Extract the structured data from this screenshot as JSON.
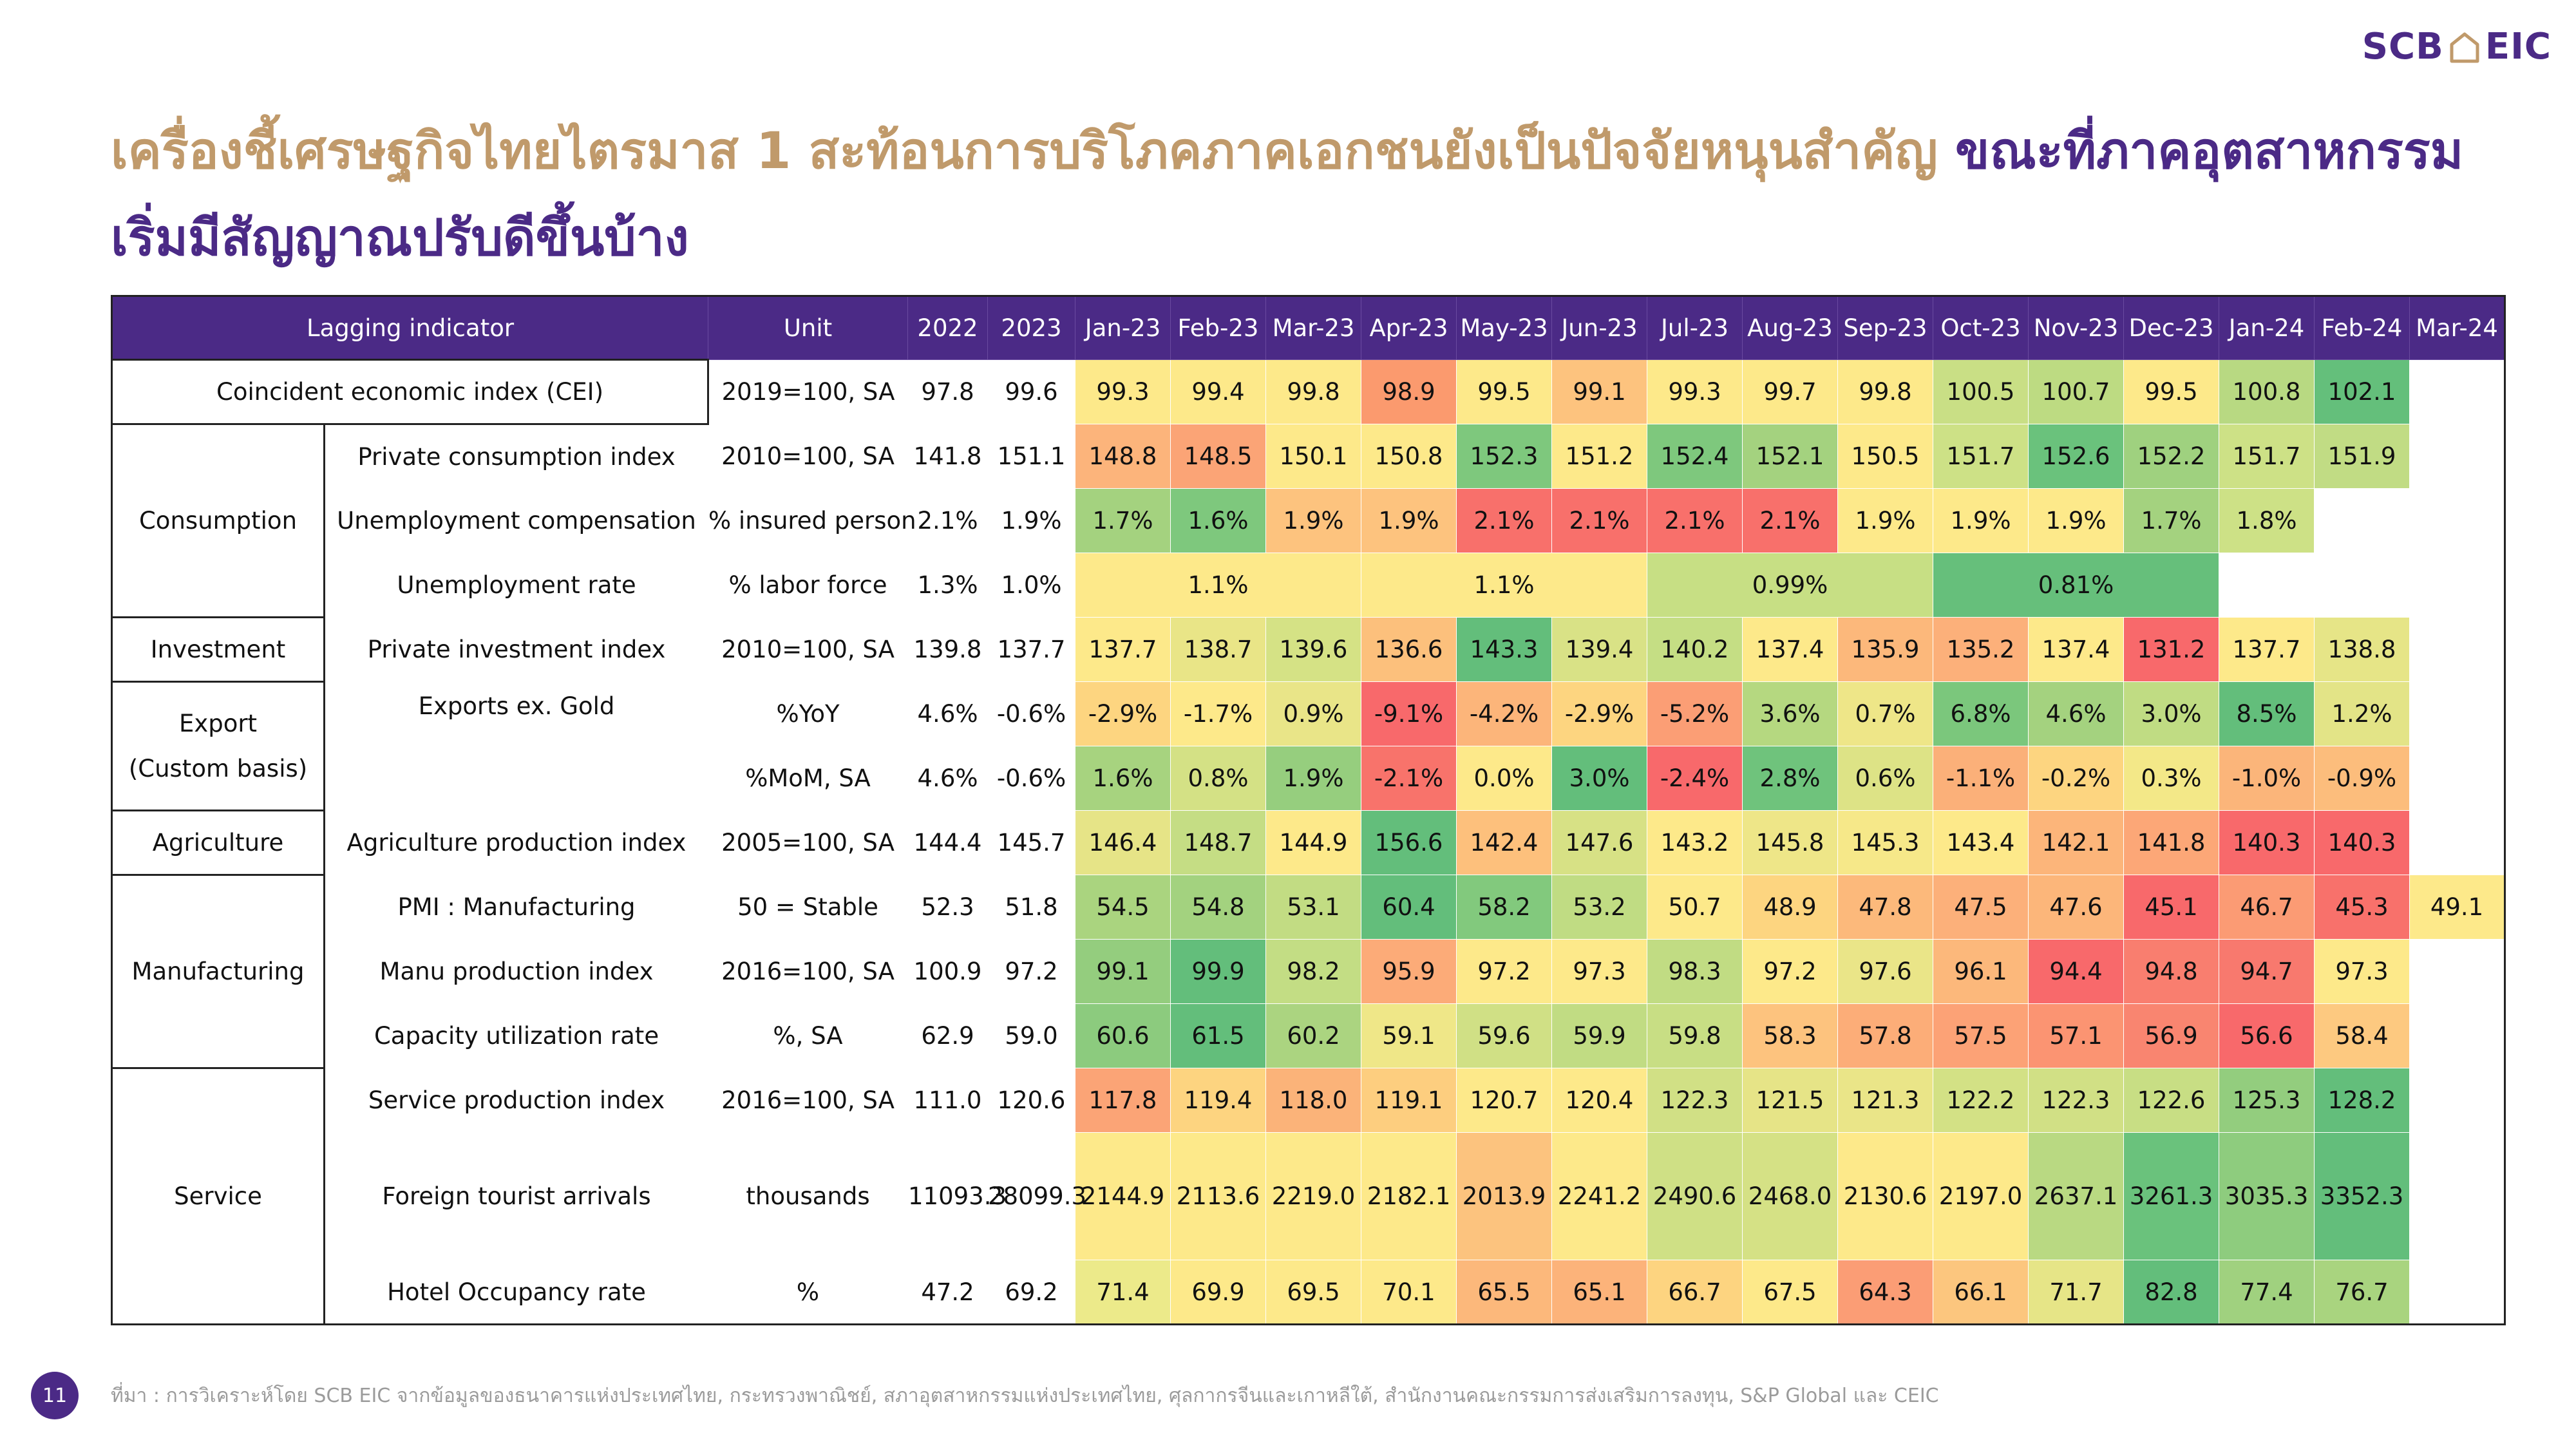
{
  "brand": {
    "logo_left": "SCB",
    "logo_right": "EIC",
    "logo_icon": "house-icon",
    "color": "#4b2a86"
  },
  "title": {
    "part1": "เครื่องชี้เศรษฐกิจไทยไตรมาส 1 สะท้อนการบริโภคภาคเอกชนยังเป็นปัจจัยหนุนสำคัญ ",
    "part2": "ขณะที่ภาคอุตสาหกรรม",
    "line2": "เริ่มมีสัญญาณปรับดีขึ้นบ้าง",
    "colors": {
      "gold": "#c09a6b",
      "purple": "#4b2a86"
    }
  },
  "table": {
    "headers": [
      "Lagging indicator",
      "Unit",
      "2022",
      "2023",
      "Jan-23",
      "Feb-23",
      "Mar-23",
      "Apr-23",
      "May-23",
      "Jun-23",
      "Jul-23",
      "Aug-23",
      "Sep-23",
      "Oct-23",
      "Nov-23",
      "Dec-23",
      "Jan-24",
      "Feb-24",
      "Mar-24"
    ],
    "groups": {
      "consumption": "Consumption",
      "investment": "Investment",
      "export_line1": "Export",
      "export_line2": "(Custom basis)",
      "agriculture": "Agriculture",
      "manufacturing": "Manufacturing",
      "service": "Service"
    },
    "rows": [
      {
        "indicator": "Coincident economic index (CEI)",
        "unit": "2019=100, SA",
        "y2022": "97.8",
        "y2023": "99.6",
        "months": [
          "99.3",
          "99.4",
          "99.8",
          "98.9",
          "99.5",
          "99.1",
          "99.3",
          "99.7",
          "99.8",
          "100.5",
          "100.7",
          "99.5",
          "100.8",
          "102.1",
          ""
        ],
        "colors": [
          "#fde98a",
          "#fde98a",
          "#fde98a",
          "#fb9a6e",
          "#fde98a",
          "#fdc37e",
          "#fde98a",
          "#fde98a",
          "#fde98a",
          "#c9df85",
          "#bddb82",
          "#fde98a",
          "#b8d982",
          "#64bf7b",
          "#ffffff"
        ]
      },
      {
        "indicator": "Private consumption index",
        "unit": "2010=100, SA",
        "y2022": "141.8",
        "y2023": "151.1",
        "months": [
          "148.8",
          "148.5",
          "150.1",
          "150.8",
          "152.3",
          "151.2",
          "152.4",
          "152.1",
          "150.5",
          "151.7",
          "152.6",
          "152.2",
          "151.7",
          "151.9",
          ""
        ],
        "colors": [
          "#fcb47b",
          "#fba476",
          "#fde98a",
          "#fde98a",
          "#7ec87d",
          "#fde98a",
          "#7ec87d",
          "#a4d27f",
          "#fde98a",
          "#cde186",
          "#6ac27c",
          "#9fd17f",
          "#cde186",
          "#c1dc84",
          "#ffffff"
        ]
      },
      {
        "indicator": "Unemployment compensation",
        "unit": "% insured person",
        "y2022": "2.1%",
        "y2023": "1.9%",
        "months": [
          "1.7%",
          "1.6%",
          "1.9%",
          "1.9%",
          "2.1%",
          "2.1%",
          "2.1%",
          "2.1%",
          "1.9%",
          "1.9%",
          "1.9%",
          "1.7%",
          "1.8%",
          "",
          ""
        ],
        "colors": [
          "#a4d27f",
          "#7ec87d",
          "#fdc37e",
          "#fdc37e",
          "#f8706b",
          "#f8706b",
          "#f8706b",
          "#f8706b",
          "#fde98a",
          "#fde98a",
          "#fde98a",
          "#a4d27f",
          "#cde186",
          "#ffffff",
          "#ffffff"
        ]
      },
      {
        "indicator": "Unemployment rate",
        "unit": "% labor force",
        "y2022": "1.3%",
        "y2023": "1.0%",
        "merged": [
          {
            "value": "1.1%",
            "span": 3,
            "color": "#fde98a"
          },
          {
            "value": "1.1%",
            "span": 3,
            "color": "#fde98a"
          },
          {
            "value": "0.99%",
            "span": 3,
            "color": "#c7df84"
          },
          {
            "value": "0.81%",
            "span": 3,
            "color": "#66bf7b"
          },
          {
            "value": "",
            "span": 3,
            "color": "#ffffff"
          }
        ]
      },
      {
        "indicator": "Private investment index",
        "unit": "2010=100, SA",
        "y2022": "139.8",
        "y2023": "137.7",
        "months": [
          "137.7",
          "138.7",
          "139.6",
          "136.6",
          "143.3",
          "139.4",
          "140.2",
          "137.4",
          "135.9",
          "135.2",
          "137.4",
          "131.2",
          "137.7",
          "138.8",
          ""
        ],
        "colors": [
          "#fde98a",
          "#e9e587",
          "#d5e285",
          "#fcc07c",
          "#63be7b",
          "#d9e286",
          "#c5de84",
          "#fde98a",
          "#fcb87b",
          "#fcb07a",
          "#fde98a",
          "#f8696b",
          "#fde98a",
          "#e6e587",
          "#ffffff"
        ]
      },
      {
        "indicator": "Exports ex. Gold",
        "unit": "%YoY",
        "y2022": "4.6%",
        "y2023": "-0.6%",
        "months": [
          "-2.9%",
          "-1.7%",
          "0.9%",
          "-9.1%",
          "-4.2%",
          "-2.9%",
          "-5.2%",
          "3.6%",
          "0.7%",
          "6.8%",
          "4.6%",
          "3.0%",
          "8.5%",
          "1.2%",
          ""
        ],
        "colors": [
          "#fdd580",
          "#fde98a",
          "#e9e588",
          "#f8696b",
          "#fcb57a",
          "#fdd580",
          "#fb9e75",
          "#b5d880",
          "#eee688",
          "#7bc77c",
          "#a4d27f",
          "#c0dc83",
          "#63be7b",
          "#e3e487",
          "#ffffff"
        ]
      },
      {
        "indicator": "",
        "unit": "%MoM, SA",
        "y2022": "4.6%",
        "y2023": "-0.6%",
        "months": [
          "1.6%",
          "0.8%",
          "1.9%",
          "-2.1%",
          "0.0%",
          "3.0%",
          "-2.4%",
          "2.8%",
          "0.6%",
          "-1.1%",
          "-0.2%",
          "0.3%",
          "-1.0%",
          "-0.9%",
          ""
        ],
        "colors": [
          "#a7d37f",
          "#d4e185",
          "#96ce7e",
          "#f8736b",
          "#fde98a",
          "#63be7b",
          "#f8696b",
          "#6fc37c",
          "#dde386",
          "#fbb079",
          "#fdd580",
          "#f3e888",
          "#fbb57a",
          "#fcbd7c",
          "#ffffff"
        ]
      },
      {
        "indicator": "Agriculture production index",
        "unit": "2005=100, SA",
        "y2022": "144.4",
        "y2023": "145.7",
        "months": [
          "146.4",
          "148.7",
          "144.9",
          "156.6",
          "142.4",
          "147.6",
          "143.2",
          "145.8",
          "145.3",
          "143.4",
          "142.1",
          "141.8",
          "140.3",
          "140.3",
          ""
        ],
        "colors": [
          "#e6e487",
          "#c5dd84",
          "#fde98a",
          "#63be7b",
          "#fdc07c",
          "#d7e185",
          "#fde98a",
          "#eee688",
          "#f6e889",
          "#fde98a",
          "#fcb57a",
          "#fca777",
          "#f8696b",
          "#f8696b",
          "#ffffff"
        ]
      },
      {
        "indicator": "PMI : Manufacturing",
        "unit": "50 = Stable",
        "y2022": "52.3",
        "y2023": "51.8",
        "months": [
          "54.5",
          "54.8",
          "53.1",
          "60.4",
          "58.2",
          "53.2",
          "50.7",
          "48.9",
          "47.8",
          "47.5",
          "47.6",
          "45.1",
          "46.7",
          "45.3",
          "49.1"
        ],
        "colors": [
          "#aad47f",
          "#a3d27f",
          "#c2dc83",
          "#63be7b",
          "#82c97d",
          "#c0dc83",
          "#fde98a",
          "#fdd580",
          "#fcb97b",
          "#fcb07a",
          "#fcb67a",
          "#f8696b",
          "#fb9b74",
          "#f8716b",
          "#fde98a"
        ]
      },
      {
        "indicator": "Manu production index",
        "unit": "2016=100, SA",
        "y2022": "100.9",
        "y2023": "97.2",
        "months": [
          "99.1",
          "99.9",
          "98.2",
          "95.9",
          "97.2",
          "97.3",
          "98.3",
          "97.2",
          "97.6",
          "96.1",
          "94.4",
          "94.8",
          "94.7",
          "97.3",
          ""
        ],
        "colors": [
          "#94cd7e",
          "#63be7b",
          "#c3dd84",
          "#fcab78",
          "#fde98a",
          "#fde98a",
          "#c1dc83",
          "#fde98a",
          "#eae588",
          "#fcb87b",
          "#f8696b",
          "#f97e6f",
          "#f8796e",
          "#fde98a",
          "#ffffff"
        ]
      },
      {
        "indicator": "Capacity utilization rate",
        "unit": "%, SA",
        "y2022": "62.9",
        "y2023": "59.0",
        "months": [
          "60.6",
          "61.5",
          "60.2",
          "59.1",
          "59.6",
          "59.9",
          "59.8",
          "58.3",
          "57.8",
          "57.5",
          "57.1",
          "56.9",
          "56.6",
          "58.4",
          ""
        ],
        "colors": [
          "#8ccb7e",
          "#63be7b",
          "#abd480",
          "#efe788",
          "#d0e085",
          "#c1dc83",
          "#c8de84",
          "#fdc37e",
          "#fcad78",
          "#fca276",
          "#fb9472",
          "#f98570",
          "#f8696b",
          "#fdc980",
          "#ffffff"
        ]
      },
      {
        "indicator": "Service production index",
        "unit": "2016=100, SA",
        "y2022": "111.0",
        "y2023": "120.6",
        "months": [
          "117.8",
          "119.4",
          "118.0",
          "119.1",
          "120.7",
          "120.4",
          "122.3",
          "121.5",
          "121.3",
          "122.2",
          "122.3",
          "122.6",
          "125.3",
          "128.2",
          ""
        ],
        "colors": [
          "#fba476",
          "#fdd480",
          "#fbb379",
          "#fdce7f",
          "#fde98a",
          "#fde98a",
          "#d1e085",
          "#e6e487",
          "#eae588",
          "#d3e185",
          "#d1e085",
          "#c8de84",
          "#93cd7e",
          "#63be7b",
          "#ffffff"
        ]
      },
      {
        "indicator": "Foreign tourist arrivals",
        "unit": "thousands",
        "y2022": "11093.3",
        "y2023": "28099.3",
        "months": [
          "2144.9",
          "2113.6",
          "2219.0",
          "2182.1",
          "2013.9",
          "2241.2",
          "2490.6",
          "2468.0",
          "2130.6",
          "2197.0",
          "2637.1",
          "3261.3",
          "3035.3",
          "3352.3",
          ""
        ],
        "colors": [
          "#fde98a",
          "#fde98a",
          "#fde98a",
          "#fde98a",
          "#fcc37e",
          "#fde98a",
          "#cfe085",
          "#d5e185",
          "#fde98a",
          "#fde98a",
          "#b9d982",
          "#6ac27c",
          "#8ecc7e",
          "#63be7b",
          "#ffffff"
        ]
      },
      {
        "indicator": "Hotel Occupancy rate",
        "unit": "%",
        "y2022": "47.2",
        "y2023": "69.2",
        "months": [
          "71.4",
          "69.9",
          "69.5",
          "70.1",
          "65.5",
          "65.1",
          "66.7",
          "67.5",
          "64.3",
          "66.1",
          "71.7",
          "82.8",
          "77.4",
          "76.7",
          ""
        ],
        "colors": [
          "#ecea8a",
          "#fde98a",
          "#fde98a",
          "#fde98a",
          "#fcb87b",
          "#fcb37a",
          "#fdd480",
          "#fde98a",
          "#fb9d75",
          "#fcc67e",
          "#e6e587",
          "#63be7b",
          "#a0d17f",
          "#a9d47f",
          "#ffffff"
        ]
      }
    ]
  },
  "footer": {
    "page_number": "11",
    "source": "ที่มา : การวิเคราะห์โดย SCB EIC จากข้อมูลของธนาคารแห่งประเทศไทย, กระทรวงพาณิชย์, สภาอุตสาหกรรมแห่งประเทศไทย, ศุลกากรจีนและเกาหลีใต้, สำนักงานคณะกรรมการส่งเสริมการลงทุน, S&P Global และ CEIC"
  }
}
